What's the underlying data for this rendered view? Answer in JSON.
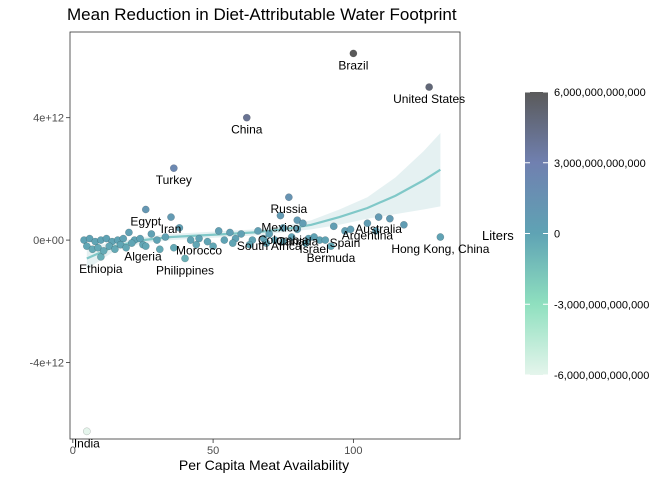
{
  "chart_data": {
    "type": "scatter",
    "title": "Mean Reduction in Diet-Attributable Water Footprint",
    "xlabel": "Per Capita Meat Availability",
    "ylabel": "",
    "xlim": [
      -1,
      138
    ],
    "ylim": [
      -6500000000000.0,
      6800000000000.0
    ],
    "x_ticks": [
      0,
      50,
      100
    ],
    "x_tick_labels": [
      "0",
      "50",
      "100"
    ],
    "y_ticks": [
      -4000000000000.0,
      0,
      4000000000000.0
    ],
    "y_tick_labels": [
      "-4e+12",
      "0e+00",
      "4e+12"
    ],
    "grid": false,
    "colors": {
      "low": "#e5f5ec",
      "mid_low": "#8fe0bf",
      "mid": "#5fa3b4",
      "mid_high": "#7080b0",
      "high": "#5a5a5a",
      "smooth_line": "#80c8c8",
      "ribbon": "#cfe6e8"
    },
    "legend": {
      "title": "Liters",
      "placement": "right",
      "min": -6000000000000,
      "max": 6000000000000,
      "ticks": [
        {
          "value": 6000000000000,
          "label": "6,000,000,000,000"
        },
        {
          "value": 3000000000000,
          "label": "3,000,000,000,000"
        },
        {
          "value": 0,
          "label": "0"
        },
        {
          "value": -3000000000000,
          "label": "-3,000,000,000,000"
        },
        {
          "value": -6000000000000,
          "label": "-6,000,000,000,000"
        }
      ]
    },
    "points": [
      {
        "x": 100,
        "y": 6100000000000.0,
        "label": "Brazil"
      },
      {
        "x": 127,
        "y": 5000000000000.0,
        "label": "United States"
      },
      {
        "x": 62,
        "y": 4000000000000.0,
        "label": "China"
      },
      {
        "x": 36,
        "y": 2350000000000.0,
        "label": "Turkey"
      },
      {
        "x": 77,
        "y": 1400000000000.0,
        "label": "Russia"
      },
      {
        "x": 26,
        "y": 1000000000000.0,
        "label": "Egypt"
      },
      {
        "x": 35,
        "y": 750000000000.0,
        "label": "Iran"
      },
      {
        "x": 74,
        "y": 800000000000.0,
        "label": "Mexico"
      },
      {
        "x": 105,
        "y": 550000000000.0,
        "label": "Argentina"
      },
      {
        "x": 109,
        "y": 750000000000.0,
        "label": "Australia"
      },
      {
        "x": 97,
        "y": 300000000000.0,
        "label": "Spain"
      },
      {
        "x": 131,
        "y": 100000000000.0,
        "label": "Hong Kong, China"
      },
      {
        "x": 92,
        "y": -200000000000.0,
        "label": "Bermuda"
      },
      {
        "x": 45,
        "y": 50000000000.0,
        "label": "Morocco"
      },
      {
        "x": 25,
        "y": -150000000000.0,
        "label": "Algeria"
      },
      {
        "x": 40,
        "y": -600000000000.0,
        "label": "Philippines"
      },
      {
        "x": 10,
        "y": -550000000000.0,
        "label": "Ethiopia"
      },
      {
        "x": 5,
        "y": -6250000000000.0,
        "label": "India"
      },
      {
        "x": 75,
        "y": 400000000000.0,
        "label": "Colombia"
      },
      {
        "x": 80,
        "y": 350000000000.0,
        "label": "Canada"
      },
      {
        "x": 70,
        "y": 200000000000.0,
        "label": "South Africa"
      },
      {
        "x": 86,
        "y": 100000000000.0,
        "label": "Israel"
      },
      {
        "x": 80,
        "y": 650000000000.0
      },
      {
        "x": 82,
        "y": 550000000000.0
      },
      {
        "x": 113,
        "y": 700000000000.0
      },
      {
        "x": 118,
        "y": 500000000000.0
      },
      {
        "x": 93,
        "y": 450000000000.0
      },
      {
        "x": 99,
        "y": 350000000000.0
      },
      {
        "x": 108,
        "y": 300000000000.0
      },
      {
        "x": 52,
        "y": 300000000000.0
      },
      {
        "x": 56,
        "y": 250000000000.0
      },
      {
        "x": 60,
        "y": 200000000000.0
      },
      {
        "x": 66,
        "y": 300000000000.0
      },
      {
        "x": 20,
        "y": 250000000000.0
      },
      {
        "x": 28,
        "y": 200000000000.0
      },
      {
        "x": 33,
        "y": 100000000000.0
      },
      {
        "x": 38,
        "y": 400000000000.0
      },
      {
        "x": 4,
        "y": 0.0
      },
      {
        "x": 6,
        "y": 50000000000.0
      },
      {
        "x": 8,
        "y": -50000000000.0
      },
      {
        "x": 10,
        "y": 0.0
      },
      {
        "x": 12,
        "y": 50000000000.0
      },
      {
        "x": 14,
        "y": -50000000000.0
      },
      {
        "x": 16,
        "y": 0.0
      },
      {
        "x": 18,
        "y": 50000000000.0
      },
      {
        "x": 22,
        "y": 0.0
      },
      {
        "x": 24,
        "y": 50000000000.0
      },
      {
        "x": 30,
        "y": 0.0
      },
      {
        "x": 42,
        "y": 0.0
      },
      {
        "x": 48,
        "y": -50000000000.0
      },
      {
        "x": 54,
        "y": 0.0
      },
      {
        "x": 58,
        "y": 50000000000.0
      },
      {
        "x": 64,
        "y": 0.0
      },
      {
        "x": 68,
        "y": 50000000000.0
      },
      {
        "x": 72,
        "y": 0.0
      },
      {
        "x": 78,
        "y": 100000000000.0
      },
      {
        "x": 84,
        "y": 50000000000.0
      },
      {
        "x": 88,
        "y": 0.0
      },
      {
        "x": 5,
        "y": -200000000000.0
      },
      {
        "x": 7,
        "y": -300000000000.0
      },
      {
        "x": 9,
        "y": -250000000000.0
      },
      {
        "x": 11,
        "y": -350000000000.0
      },
      {
        "x": 13,
        "y": -200000000000.0
      },
      {
        "x": 15,
        "y": -300000000000.0
      },
      {
        "x": 17,
        "y": -150000000000.0
      },
      {
        "x": 19,
        "y": -250000000000.0
      },
      {
        "x": 21,
        "y": -100000000000.0
      },
      {
        "x": 26,
        "y": -200000000000.0
      },
      {
        "x": 31,
        "y": -300000000000.0
      },
      {
        "x": 36,
        "y": -250000000000.0
      },
      {
        "x": 44,
        "y": -150000000000.0
      },
      {
        "x": 50,
        "y": -200000000000.0
      },
      {
        "x": 57,
        "y": -100000000000.0
      },
      {
        "x": 63,
        "y": -150000000000.0
      },
      {
        "x": 69,
        "y": -100000000000.0
      },
      {
        "x": 75,
        "y": -50000000000.0
      },
      {
        "x": 83,
        "y": -100000000000.0
      },
      {
        "x": 90,
        "y": 0.0
      }
    ],
    "smooth": {
      "x": [
        5,
        15,
        25,
        35,
        45,
        55,
        65,
        75,
        85,
        95,
        105,
        115,
        125,
        131
      ],
      "y": [
        -600000000000.0,
        -200000000000.0,
        0.0,
        100000000000.0,
        150000000000.0,
        200000000000.0,
        250000000000.0,
        350000000000.0,
        500000000000.0,
        750000000000.0,
        1050000000000.0,
        1450000000000.0,
        1950000000000.0,
        2300000000000.0
      ],
      "lower": [
        -950000000000.0,
        -350000000000.0,
        -100000000000.0,
        0.0,
        50000000000.0,
        100000000000.0,
        150000000000.0,
        250000000000.0,
        350000000000.0,
        500000000000.0,
        700000000000.0,
        850000000000.0,
        1000000000000.0,
        1100000000000.0
      ],
      "upper": [
        -250000000000.0,
        -50000000000.0,
        100000000000.0,
        200000000000.0,
        250000000000.0,
        300000000000.0,
        350000000000.0,
        450000000000.0,
        650000000000.0,
        1000000000000.0,
        1400000000000.0,
        2050000000000.0,
        2900000000000.0,
        3500000000000.0
      ]
    }
  }
}
